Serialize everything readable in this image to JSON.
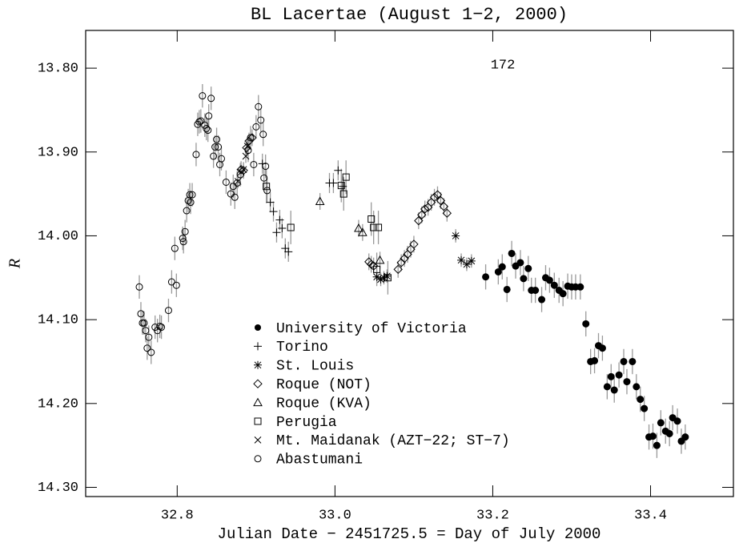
{
  "chart_data": {
    "type": "scatter",
    "title": "BL Lacertae   (August 1−2, 2000)",
    "annotation": "172",
    "xlabel": "Julian Date − 2451725.5 = Day of July 2000",
    "ylabel": "R",
    "xlim": [
      32.684,
      33.505
    ],
    "ylim": [
      13.755,
      14.311
    ],
    "y_inverted": true,
    "xticks": [
      32.8,
      {
        "value": 33,
        "label": "33.0"
      },
      33.2,
      33.4
    ],
    "yticks": [
      {
        "value": 13.8,
        "label": "13.80"
      },
      {
        "value": 13.9,
        "label": "13.90"
      },
      {
        "value": 14,
        "label": "14.00"
      },
      {
        "value": 14.1,
        "label": "14.10"
      },
      {
        "value": 14.2,
        "label": "14.20"
      },
      {
        "value": 14.3,
        "label": "14.30"
      }
    ],
    "error_color": "#999999",
    "series": [
      {
        "name": "University of Victoria",
        "marker": "filled-circle",
        "color": "#000000",
        "error": 0.015,
        "x": [
          33.191,
          33.207,
          33.212,
          33.218,
          33.224,
          33.229,
          33.235,
          33.239,
          33.245,
          33.249,
          33.254,
          33.262,
          33.267,
          33.272,
          33.278,
          33.284,
          33.289,
          33.295,
          33.3,
          33.305,
          33.311,
          33.318,
          33.324,
          33.329,
          33.334,
          33.339,
          33.345,
          33.35,
          33.354,
          33.36,
          33.366,
          33.37,
          33.377,
          33.382,
          33.387,
          33.392,
          33.398,
          33.403,
          33.408,
          33.413,
          33.419,
          33.424,
          33.428,
          33.434,
          33.439,
          33.444
        ],
        "values": [
          14.049,
          14.043,
          14.037,
          14.064,
          14.021,
          14.036,
          14.032,
          14.051,
          14.039,
          14.065,
          14.065,
          14.076,
          14.05,
          14.053,
          14.059,
          14.065,
          14.069,
          14.06,
          14.061,
          14.061,
          14.061,
          14.105,
          14.15,
          14.149,
          14.131,
          14.134,
          14.18,
          14.168,
          14.184,
          14.166,
          14.15,
          14.174,
          14.15,
          14.18,
          14.195,
          14.206,
          14.24,
          14.239,
          14.25,
          14.223,
          14.233,
          14.236,
          14.217,
          14.221,
          14.245,
          14.24
        ]
      },
      {
        "name": "Torino",
        "marker": "plus",
        "color": "#000000",
        "error": 0.012,
        "x": [
          32.908,
          32.918,
          32.922,
          32.926,
          32.93,
          32.933,
          32.937,
          32.941,
          32.993,
          32.998,
          33.004,
          33.01
        ],
        "values": [
          13.914,
          13.96,
          13.971,
          13.996,
          13.981,
          13.991,
          14.015,
          14.019,
          13.937,
          13.937,
          13.922,
          13.941
        ]
      },
      {
        "name": "St. Louis",
        "marker": "asterisk",
        "color": "#000000",
        "error": 0.008,
        "x": [
          33.053,
          33.058,
          33.062,
          33.066,
          33.153,
          33.16,
          33.167,
          33.173
        ],
        "values": [
          14.049,
          14.052,
          14.05,
          14.048,
          14.0,
          14.029,
          14.034,
          14.03
        ]
      },
      {
        "name": "Roque (NOT)",
        "marker": "diamond",
        "color": "#000000",
        "error": 0.01,
        "x": [
          32.881,
          32.884,
          32.888,
          32.891,
          32.895,
          33.043,
          33.046,
          33.049,
          33.08,
          33.084,
          33.088,
          33.092,
          33.096,
          33.1,
          33.106,
          33.11,
          33.114,
          33.118,
          33.122,
          33.126,
          33.13,
          33.134,
          33.138,
          33.142
        ],
        "values": [
          13.921,
          13.922,
          13.895,
          13.887,
          13.883,
          14.031,
          14.034,
          14.036,
          14.04,
          14.032,
          14.027,
          14.022,
          14.016,
          14.01,
          13.982,
          13.975,
          13.968,
          13.966,
          13.96,
          13.954,
          13.951,
          13.958,
          13.965,
          13.973
        ]
      },
      {
        "name": "Roque (KVA)",
        "marker": "triangle",
        "color": "#000000",
        "error": 0.01,
        "x": [
          32.981,
          33.03,
          33.035,
          33.057
        ],
        "values": [
          13.959,
          13.991,
          13.996,
          14.029
        ]
      },
      {
        "name": "Perugia",
        "marker": "square",
        "color": "#000000",
        "error": 0.02,
        "x": [
          32.913,
          32.944,
          33.008,
          33.011,
          33.014,
          33.046,
          33.049,
          33.055,
          33.053,
          33.067
        ],
        "values": [
          13.941,
          13.99,
          13.94,
          13.95,
          13.93,
          13.98,
          13.99,
          13.99,
          14.04,
          14.05
        ]
      },
      {
        "name": "Mt. Maidanak (AZT−22; ST−7)",
        "marker": "x",
        "color": "#000000",
        "error": 0.008,
        "x": [
          32.877,
          32.881,
          32.884,
          32.887,
          32.889
        ],
        "values": [
          13.935,
          13.924,
          13.921,
          13.905,
          13.893
        ]
      },
      {
        "name": "Abastumani",
        "marker": "circle",
        "color": "#000000",
        "error": 0.014,
        "x": [
          32.752,
          32.754,
          32.756,
          32.758,
          32.76,
          32.762,
          32.764,
          32.767,
          32.772,
          32.775,
          32.778,
          32.78,
          32.789,
          32.793,
          32.797,
          32.799,
          32.807,
          32.808,
          32.81,
          32.812,
          32.814,
          32.816,
          32.817,
          32.819,
          32.824,
          32.826,
          32.828,
          32.83,
          32.832,
          32.835,
          32.837,
          32.839,
          32.84,
          32.843,
          32.846,
          32.848,
          32.85,
          32.852,
          32.854,
          32.856,
          32.862,
          32.868,
          32.871,
          32.873,
          32.876,
          32.88,
          32.89,
          32.893,
          32.897,
          32.9,
          32.903,
          32.906,
          32.909,
          32.91,
          32.912,
          32.914
        ],
        "values": [
          14.061,
          14.093,
          14.104,
          14.104,
          14.113,
          14.134,
          14.121,
          14.139,
          14.109,
          14.113,
          14.108,
          14.109,
          14.089,
          14.055,
          14.015,
          14.059,
          14.003,
          14.007,
          13.995,
          13.97,
          13.958,
          13.951,
          13.96,
          13.951,
          13.903,
          13.867,
          13.864,
          13.863,
          13.833,
          13.868,
          13.872,
          13.874,
          13.857,
          13.836,
          13.905,
          13.894,
          13.885,
          13.894,
          13.915,
          13.908,
          13.936,
          13.95,
          13.941,
          13.954,
          13.937,
          13.927,
          13.898,
          13.883,
          13.915,
          13.87,
          13.846,
          13.862,
          13.879,
          13.931,
          13.917,
          13.946
        ]
      }
    ]
  }
}
